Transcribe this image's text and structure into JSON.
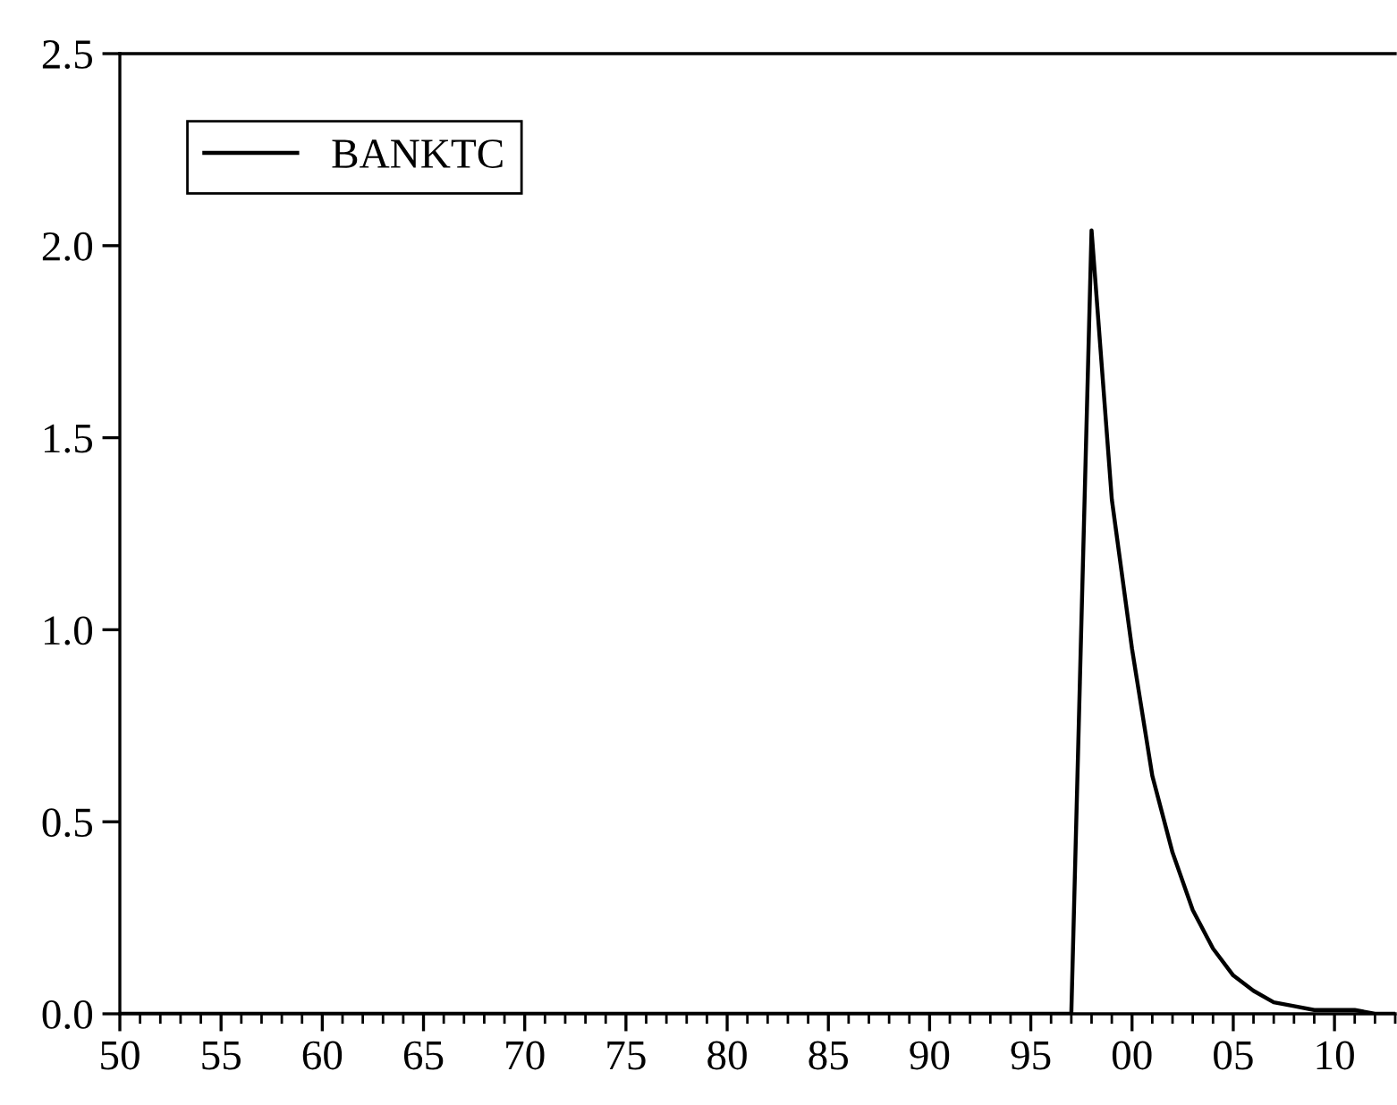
{
  "chart_data": {
    "type": "line",
    "x": [
      1950,
      1951,
      1952,
      1953,
      1954,
      1955,
      1956,
      1957,
      1958,
      1959,
      1960,
      1961,
      1962,
      1963,
      1964,
      1965,
      1966,
      1967,
      1968,
      1969,
      1970,
      1971,
      1972,
      1973,
      1974,
      1975,
      1976,
      1977,
      1978,
      1979,
      1980,
      1981,
      1982,
      1983,
      1984,
      1985,
      1986,
      1987,
      1988,
      1989,
      1990,
      1991,
      1992,
      1993,
      1994,
      1995,
      1996,
      1997,
      1998,
      1999,
      2000,
      2001,
      2002,
      2003,
      2004,
      2005,
      2006,
      2007,
      2008,
      2009,
      2010,
      2011,
      2012,
      2013
    ],
    "series": [
      {
        "name": "BANKTC",
        "color": "#000000",
        "values": [
          0,
          0,
          0,
          0,
          0,
          0,
          0,
          0,
          0,
          0,
          0,
          0,
          0,
          0,
          0,
          0,
          0,
          0,
          0,
          0,
          0,
          0,
          0,
          0,
          0,
          0,
          0,
          0,
          0,
          0,
          0,
          0,
          0,
          0,
          0,
          0,
          0,
          0,
          0,
          0,
          0,
          0,
          0,
          0,
          0,
          0,
          0,
          0,
          2.04,
          1.34,
          0.95,
          0.62,
          0.42,
          0.27,
          0.17,
          0.1,
          0.06,
          0.03,
          0.02,
          0.01,
          0.01,
          0.01,
          0.0,
          0.0
        ]
      }
    ],
    "xlim": [
      1950,
      2013
    ],
    "xticks": [
      {
        "value": 1950,
        "label": "50"
      },
      {
        "value": 1951,
        "label": null
      },
      {
        "value": 1952,
        "label": null
      },
      {
        "value": 1953,
        "label": null
      },
      {
        "value": 1954,
        "label": null
      },
      {
        "value": 1955,
        "label": "55"
      },
      {
        "value": 1956,
        "label": null
      },
      {
        "value": 1957,
        "label": null
      },
      {
        "value": 1958,
        "label": null
      },
      {
        "value": 1959,
        "label": null
      },
      {
        "value": 1960,
        "label": "60"
      },
      {
        "value": 1961,
        "label": null
      },
      {
        "value": 1962,
        "label": null
      },
      {
        "value": 1963,
        "label": null
      },
      {
        "value": 1964,
        "label": null
      },
      {
        "value": 1965,
        "label": "65"
      },
      {
        "value": 1966,
        "label": null
      },
      {
        "value": 1967,
        "label": null
      },
      {
        "value": 1968,
        "label": null
      },
      {
        "value": 1969,
        "label": null
      },
      {
        "value": 1970,
        "label": "70"
      },
      {
        "value": 1971,
        "label": null
      },
      {
        "value": 1972,
        "label": null
      },
      {
        "value": 1973,
        "label": null
      },
      {
        "value": 1974,
        "label": null
      },
      {
        "value": 1975,
        "label": "75"
      },
      {
        "value": 1976,
        "label": null
      },
      {
        "value": 1977,
        "label": null
      },
      {
        "value": 1978,
        "label": null
      },
      {
        "value": 1979,
        "label": null
      },
      {
        "value": 1980,
        "label": "80"
      },
      {
        "value": 1981,
        "label": null
      },
      {
        "value": 1982,
        "label": null
      },
      {
        "value": 1983,
        "label": null
      },
      {
        "value": 1984,
        "label": null
      },
      {
        "value": 1985,
        "label": "85"
      },
      {
        "value": 1986,
        "label": null
      },
      {
        "value": 1987,
        "label": null
      },
      {
        "value": 1988,
        "label": null
      },
      {
        "value": 1989,
        "label": null
      },
      {
        "value": 1990,
        "label": "90"
      },
      {
        "value": 1991,
        "label": null
      },
      {
        "value": 1992,
        "label": null
      },
      {
        "value": 1993,
        "label": null
      },
      {
        "value": 1994,
        "label": null
      },
      {
        "value": 1995,
        "label": "95"
      },
      {
        "value": 1996,
        "label": null
      },
      {
        "value": 1997,
        "label": null
      },
      {
        "value": 1998,
        "label": null
      },
      {
        "value": 1999,
        "label": null
      },
      {
        "value": 2000,
        "label": "00"
      },
      {
        "value": 2001,
        "label": null
      },
      {
        "value": 2002,
        "label": null
      },
      {
        "value": 2003,
        "label": null
      },
      {
        "value": 2004,
        "label": null
      },
      {
        "value": 2005,
        "label": "05"
      },
      {
        "value": 2006,
        "label": null
      },
      {
        "value": 2007,
        "label": null
      },
      {
        "value": 2008,
        "label": null
      },
      {
        "value": 2009,
        "label": null
      },
      {
        "value": 2010,
        "label": "10"
      },
      {
        "value": 2011,
        "label": null
      },
      {
        "value": 2012,
        "label": null
      },
      {
        "value": 2013,
        "label": null
      }
    ],
    "ylim": [
      0,
      2.5
    ],
    "yticks": [
      {
        "value": 0,
        "label": "0.0"
      },
      {
        "value": 0.5,
        "label": "0.5"
      },
      {
        "value": 1,
        "label": "1.0"
      },
      {
        "value": 1.5,
        "label": "1.5"
      },
      {
        "value": 2,
        "label": "2.0"
      },
      {
        "value": 2.5,
        "label": "2.5"
      }
    ],
    "legend": "top left",
    "grid": false,
    "marker": "none",
    "line_style": "solid"
  }
}
